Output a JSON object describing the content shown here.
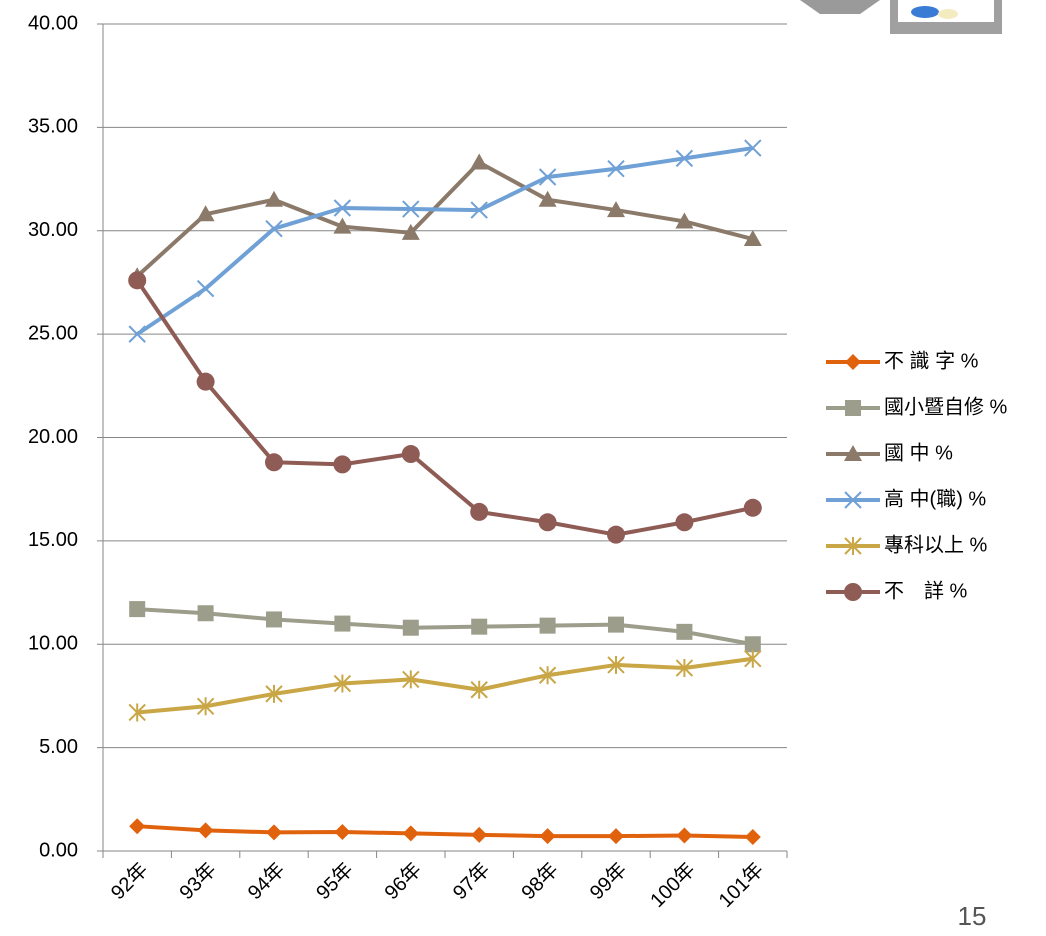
{
  "chart_data": {
    "type": "line",
    "categories": [
      "92年",
      "93年",
      "94年",
      "95年",
      "96年",
      "97年",
      "98年",
      "99年",
      "100年",
      "101年"
    ],
    "ylim": [
      0,
      40
    ],
    "yticks": [
      {
        "value": 0,
        "label": "0.00"
      },
      {
        "value": 5,
        "label": "5.00"
      },
      {
        "value": 10,
        "label": "10.00"
      },
      {
        "value": 15,
        "label": "15.00"
      },
      {
        "value": 20,
        "label": "20.00"
      },
      {
        "value": 25,
        "label": "25.00"
      },
      {
        "value": 30,
        "label": "30.00"
      },
      {
        "value": 35,
        "label": "35.00"
      },
      {
        "value": 40,
        "label": "40.00"
      }
    ],
    "grid": true,
    "legend": "right",
    "series": [
      {
        "name": "不 識 字 %",
        "color": "#e0620d",
        "marker": "diamond",
        "values": [
          1.2,
          1.0,
          0.9,
          0.92,
          0.85,
          0.78,
          0.72,
          0.72,
          0.75,
          0.68
        ]
      },
      {
        "name": "國小暨自修 %",
        "color": "#9c9d8b",
        "marker": "square",
        "values": [
          11.7,
          11.5,
          11.2,
          11.0,
          10.8,
          10.85,
          10.9,
          10.95,
          10.6,
          10.0
        ]
      },
      {
        "name": "國 中 %",
        "color": "#8b7a69",
        "marker": "triangle",
        "values": [
          27.8,
          30.8,
          31.5,
          30.2,
          29.9,
          33.3,
          31.5,
          31.0,
          30.45,
          29.6
        ]
      },
      {
        "name": "高 中(職) %",
        "color": "#6fa1d6",
        "marker": "cross",
        "values": [
          25.0,
          27.2,
          30.1,
          31.1,
          31.05,
          31.0,
          32.6,
          33.0,
          33.5,
          34.0
        ]
      },
      {
        "name": "專科以上 %",
        "color": "#c9a646",
        "marker": "star",
        "values": [
          6.7,
          7.0,
          7.6,
          8.1,
          8.3,
          7.8,
          8.5,
          9.0,
          8.85,
          9.3
        ]
      },
      {
        "name": "不　詳 %",
        "color": "#8e5c55",
        "marker": "circle",
        "values": [
          27.6,
          22.7,
          18.8,
          18.7,
          19.2,
          16.4,
          15.9,
          15.3,
          15.9,
          16.6
        ]
      }
    ]
  },
  "page_number": "15"
}
